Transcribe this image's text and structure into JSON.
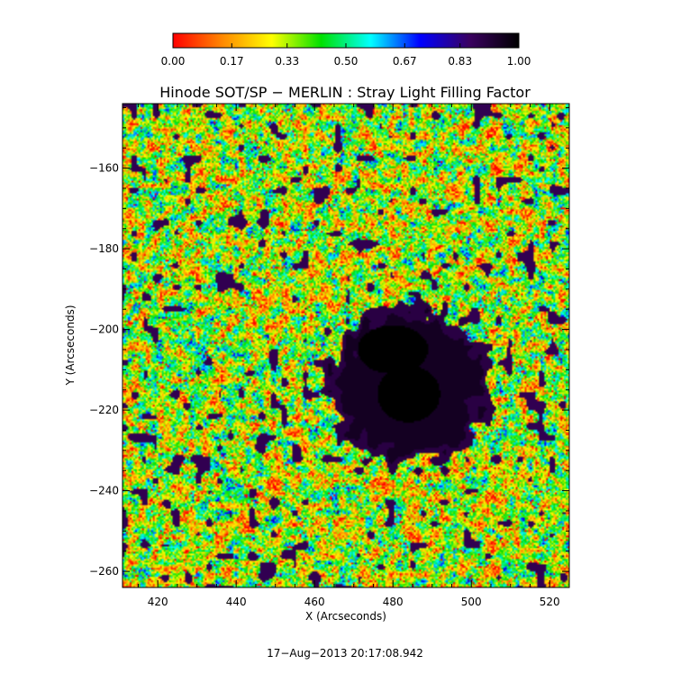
{
  "chart_data": {
    "type": "heatmap",
    "title": "Hinode SOT/SP − MERLIN : Stray Light Filling Factor",
    "xlabel": "X (Arcseconds)",
    "ylabel": "Y (Arcseconds)",
    "xlim": [
      411,
      525
    ],
    "ylim": [
      -264,
      -144
    ],
    "x_ticks": [
      420,
      440,
      460,
      480,
      500,
      520
    ],
    "x_tick_labels": [
      "420",
      "440",
      "460",
      "480",
      "500",
      "520"
    ],
    "y_ticks": [
      -160,
      -180,
      -200,
      -220,
      -240,
      -260
    ],
    "y_tick_labels": [
      "−160",
      "−180",
      "−200",
      "−220",
      "−240",
      "−260"
    ],
    "colorbar": {
      "range": [
        0.0,
        1.0
      ],
      "tick_values": [
        0.0,
        0.17,
        0.33,
        0.5,
        0.67,
        0.83,
        1.0
      ],
      "tick_labels": [
        "0.00",
        "0.17",
        "0.33",
        "0.50",
        "0.67",
        "0.83",
        "1.00"
      ],
      "colors": [
        "#ff0000",
        "#ff8800",
        "#ffff00",
        "#00e000",
        "#00ffff",
        "#0000ff",
        "#3a0060",
        "#000000"
      ]
    },
    "features": [
      {
        "name": "sunspot umbra",
        "x": 484,
        "y": -216,
        "value": 1.0
      },
      {
        "name": "umbra core",
        "x": 480,
        "y": -205,
        "value": 1.0
      },
      {
        "name": "penumbra",
        "x": 484,
        "y": -214,
        "value": 0.9
      },
      {
        "name": "quiet sun background",
        "value": 0.35
      }
    ],
    "grid": false
  },
  "footer": {
    "timestamp": "17−Aug−2013 20:17:08.942"
  }
}
